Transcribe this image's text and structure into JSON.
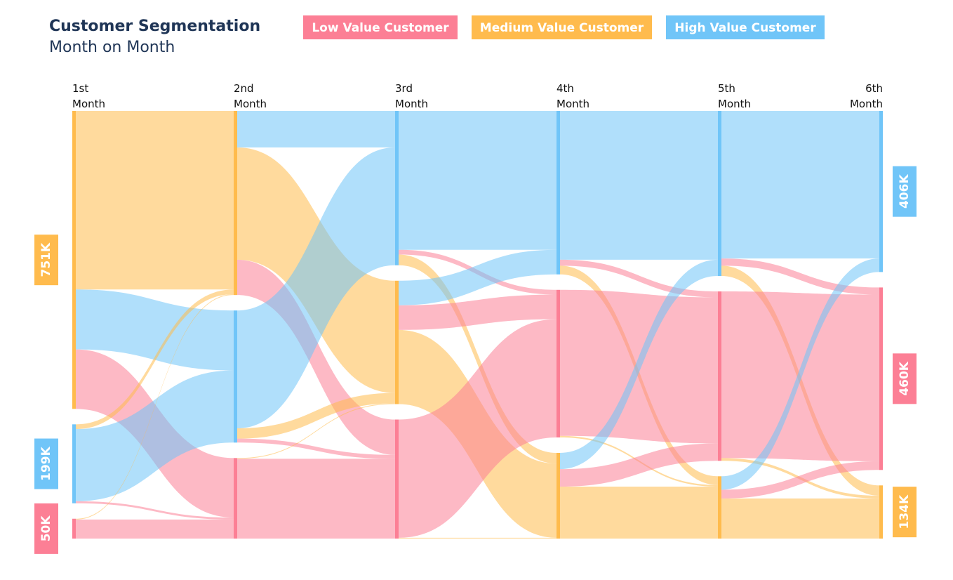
{
  "chart_data": {
    "type": "sankey",
    "title": "Customer Segmentation",
    "subtitle": "Month on Month",
    "columns": [
      "1st Month",
      "2nd Month",
      "3rd Month",
      "4th Month",
      "5th Month",
      "6th Month"
    ],
    "segments": [
      {
        "name": "Low Value Customer",
        "color": "#fc7f95"
      },
      {
        "name": "Medium Value Customer",
        "color": "#ffbb4d"
      },
      {
        "name": "High Value Customer",
        "color": "#70c5f8"
      }
    ],
    "node_order": [
      [
        1,
        2,
        0
      ],
      [
        1,
        2,
        0
      ],
      [
        2,
        1,
        0
      ],
      [
        2,
        0,
        1
      ],
      [
        2,
        0,
        1
      ],
      [
        2,
        0,
        1
      ]
    ],
    "start_nodes": [
      {
        "segment": 1,
        "value": 751000,
        "label": "751K"
      },
      {
        "segment": 2,
        "value": 199000,
        "label": "199K"
      },
      {
        "segment": 0,
        "value": 50000,
        "label": "50K"
      }
    ],
    "end_nodes": [
      {
        "segment": 2,
        "value": 406000,
        "label": "406K"
      },
      {
        "segment": 0,
        "value": 460000,
        "label": "460K"
      },
      {
        "segment": 1,
        "value": 134000,
        "label": "134K"
      }
    ],
    "links": [
      {
        "column": 0,
        "source": 1,
        "target": 1,
        "value": 450000
      },
      {
        "column": 0,
        "source": 1,
        "target": 2,
        "value": 151000
      },
      {
        "column": 0,
        "source": 1,
        "target": 0,
        "value": 150000
      },
      {
        "column": 0,
        "source": 2,
        "target": 1,
        "value": 12000
      },
      {
        "column": 0,
        "source": 2,
        "target": 2,
        "value": 182000
      },
      {
        "column": 0,
        "source": 2,
        "target": 0,
        "value": 5000
      },
      {
        "column": 0,
        "source": 0,
        "target": 1,
        "value": 2000
      },
      {
        "column": 0,
        "source": 0,
        "target": 0,
        "value": 48000
      },
      {
        "column": 1,
        "source": 1,
        "target": 2,
        "value": 92000
      },
      {
        "column": 1,
        "source": 1,
        "target": 1,
        "value": 283000
      },
      {
        "column": 1,
        "source": 1,
        "target": 0,
        "value": 89000
      },
      {
        "column": 1,
        "source": 2,
        "target": 2,
        "value": 297000
      },
      {
        "column": 1,
        "source": 2,
        "target": 1,
        "value": 26000
      },
      {
        "column": 1,
        "source": 2,
        "target": 0,
        "value": 10000
      },
      {
        "column": 1,
        "source": 0,
        "target": 1,
        "value": 2000
      },
      {
        "column": 1,
        "source": 0,
        "target": 0,
        "value": 201000
      },
      {
        "column": 2,
        "source": 2,
        "target": 2,
        "value": 350000
      },
      {
        "column": 2,
        "source": 2,
        "target": 0,
        "value": 12000
      },
      {
        "column": 2,
        "source": 2,
        "target": 1,
        "value": 27000
      },
      {
        "column": 2,
        "source": 1,
        "target": 2,
        "value": 62000
      },
      {
        "column": 2,
        "source": 1,
        "target": 0,
        "value": 62000
      },
      {
        "column": 2,
        "source": 1,
        "target": 1,
        "value": 187000
      },
      {
        "column": 2,
        "source": 0,
        "target": 0,
        "value": 298000
      },
      {
        "column": 2,
        "source": 0,
        "target": 1,
        "value": 2000
      },
      {
        "column": 3,
        "source": 2,
        "target": 2,
        "value": 375000
      },
      {
        "column": 3,
        "source": 2,
        "target": 0,
        "value": 15000
      },
      {
        "column": 3,
        "source": 2,
        "target": 1,
        "value": 22000
      },
      {
        "column": 3,
        "source": 0,
        "target": 0,
        "value": 368000
      },
      {
        "column": 3,
        "source": 0,
        "target": 1,
        "value": 4000
      },
      {
        "column": 3,
        "source": 1,
        "target": 2,
        "value": 41000
      },
      {
        "column": 3,
        "source": 1,
        "target": 0,
        "value": 44000
      },
      {
        "column": 3,
        "source": 1,
        "target": 1,
        "value": 131000
      },
      {
        "column": 4,
        "source": 2,
        "target": 2,
        "value": 372000
      },
      {
        "column": 4,
        "source": 2,
        "target": 0,
        "value": 18000
      },
      {
        "column": 4,
        "source": 2,
        "target": 1,
        "value": 26000
      },
      {
        "column": 4,
        "source": 0,
        "target": 0,
        "value": 420000
      },
      {
        "column": 4,
        "source": 0,
        "target": 1,
        "value": 7000
      },
      {
        "column": 4,
        "source": 1,
        "target": 2,
        "value": 34000
      },
      {
        "column": 4,
        "source": 1,
        "target": 0,
        "value": 22000
      },
      {
        "column": 4,
        "source": 1,
        "target": 1,
        "value": 101000
      }
    ]
  }
}
